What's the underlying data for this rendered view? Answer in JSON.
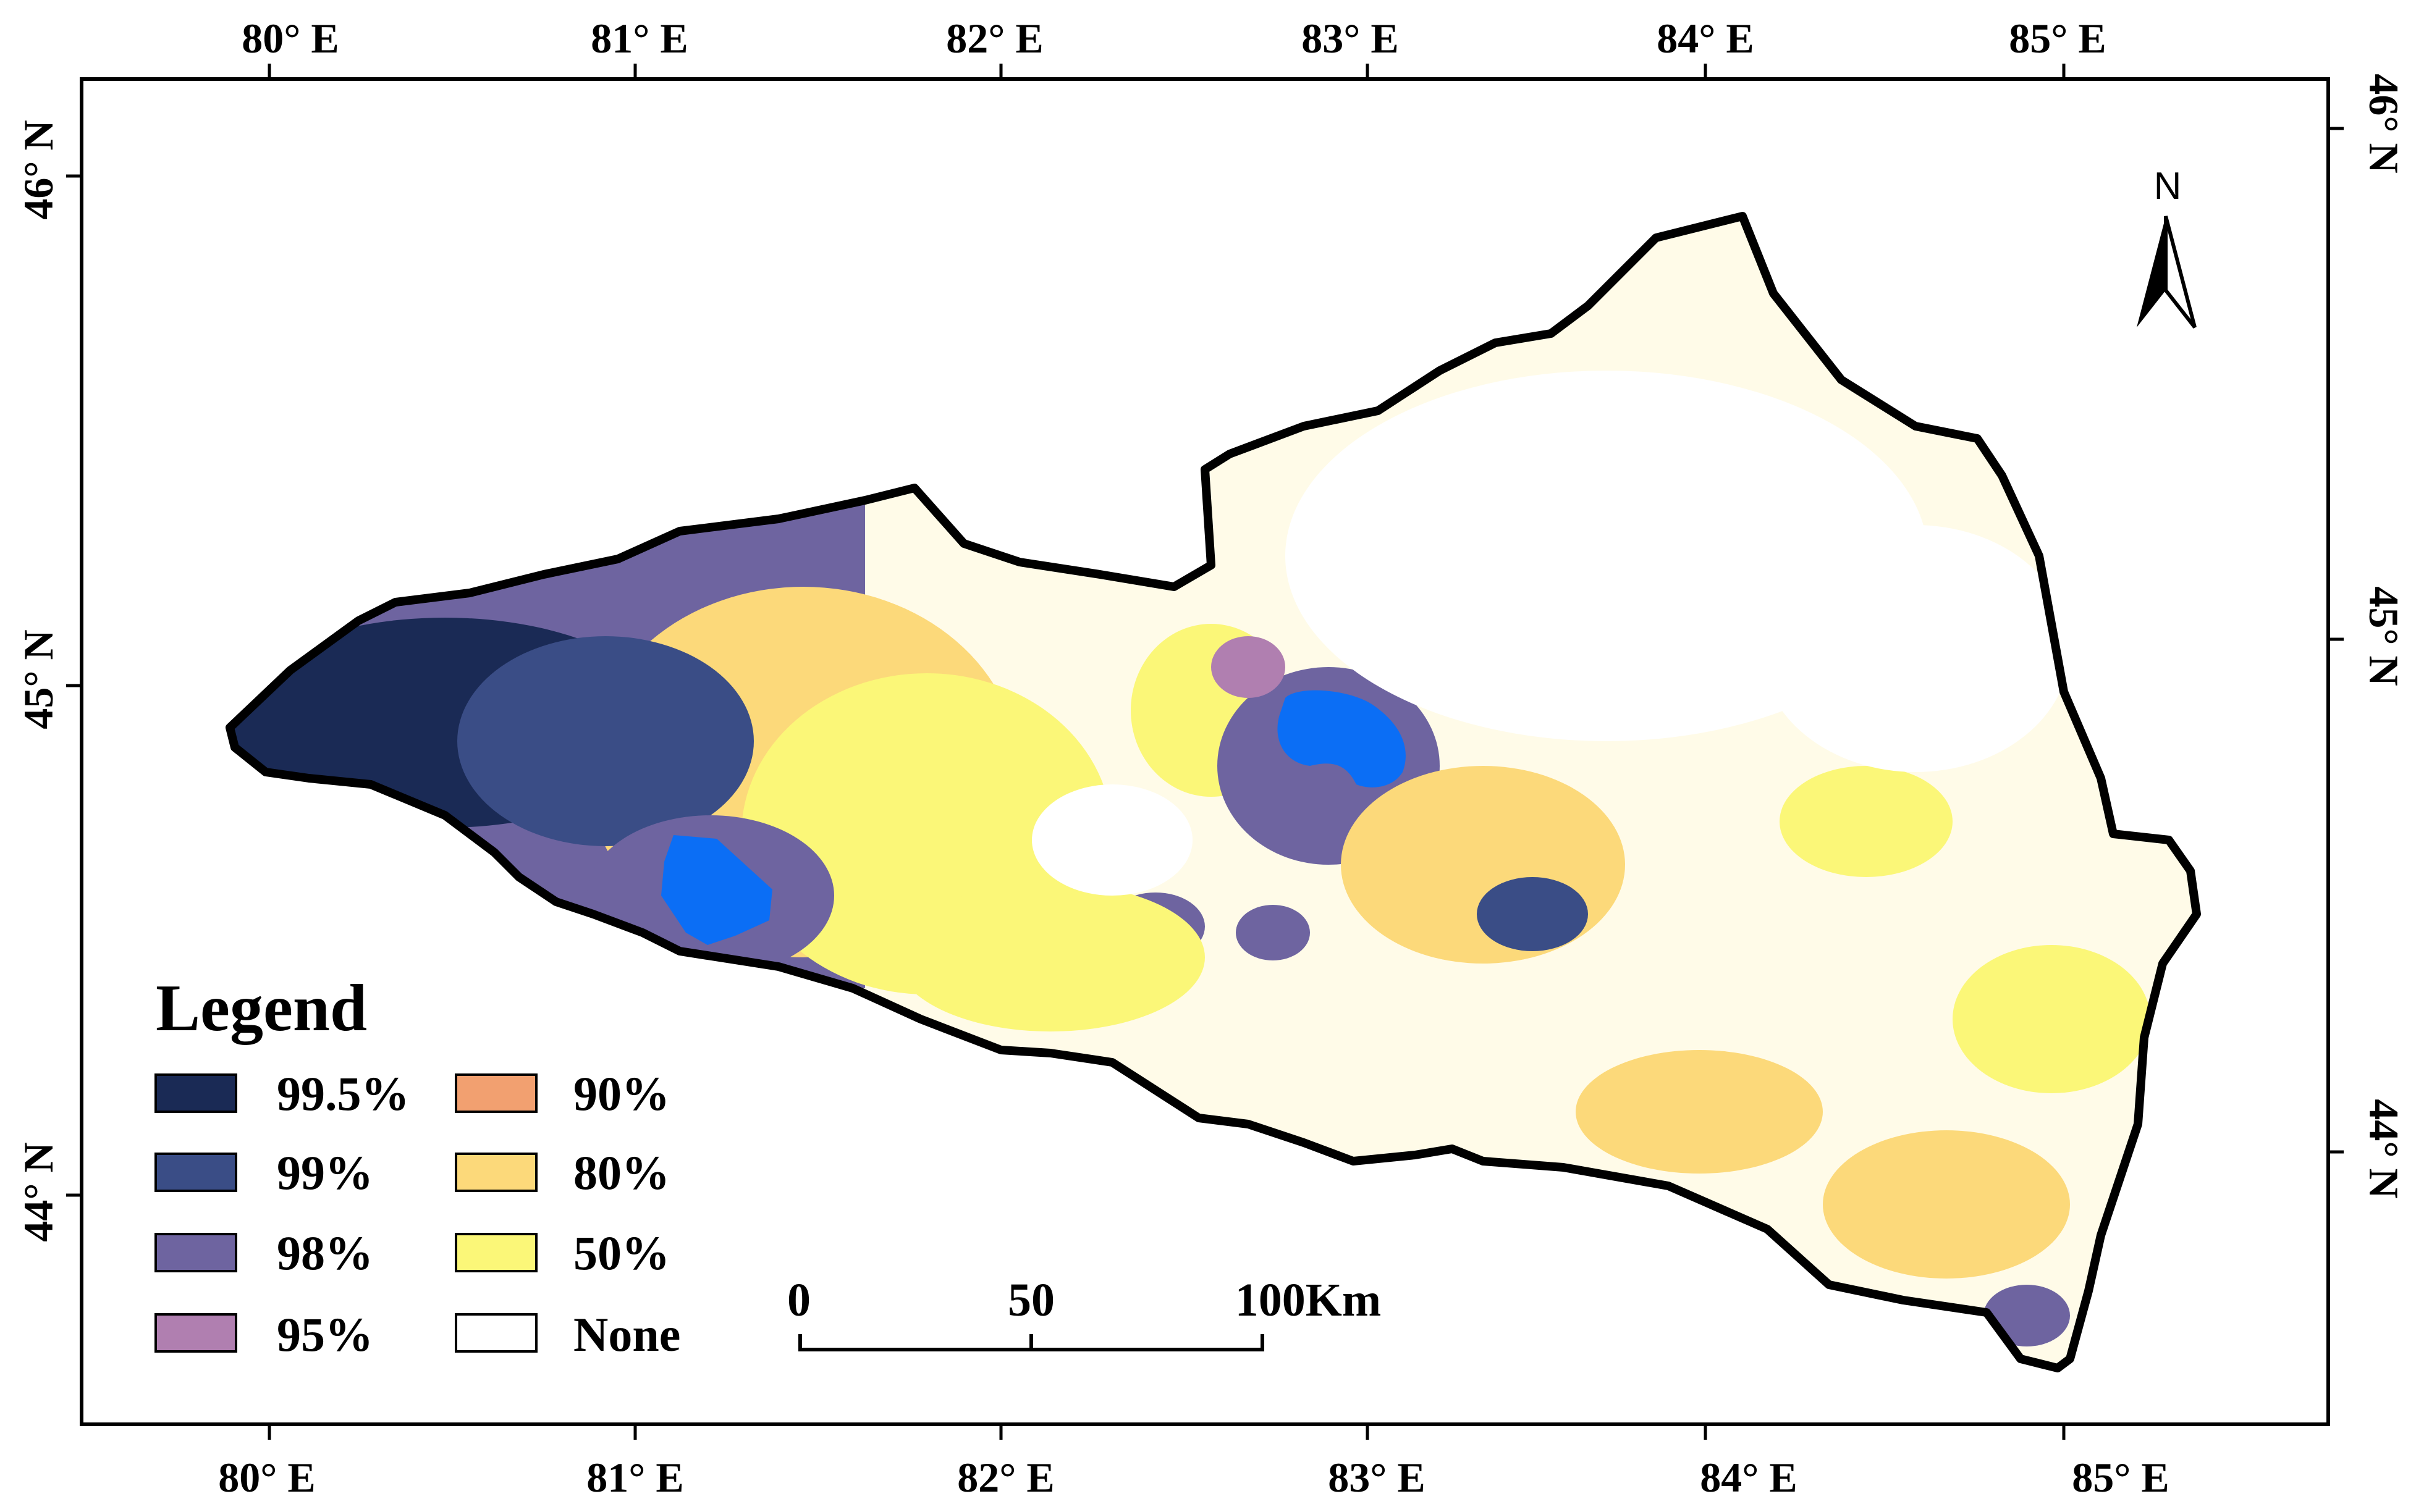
{
  "map": {
    "top_lon_labels": [
      "80° E",
      "81° E",
      "82° E",
      "83° E",
      "84° E",
      "85° E"
    ],
    "bottom_lon_labels": [
      "80° E",
      "81° E",
      "82° E",
      "83° E",
      "84° E",
      "85° E"
    ],
    "left_lat_labels": [
      "46° N",
      "45° N",
      "44° N"
    ],
    "right_lat_labels": [
      "46° N",
      "45° N",
      "44° N"
    ],
    "north_arrow": {
      "label": "N",
      "icon": "north-arrow-icon"
    },
    "scale_bar": {
      "labels": [
        "0",
        "50",
        "100Km"
      ]
    },
    "lakes": {
      "color": "#0b6ef5"
    },
    "boundary_color": "#000000"
  },
  "legend": {
    "title": "Legend",
    "items": [
      {
        "label": "99.5%",
        "color": "#1a2a55"
      },
      {
        "label": "99%",
        "color": "#3a4d86"
      },
      {
        "label": "98%",
        "color": "#6e64a0"
      },
      {
        "label": "95%",
        "color": "#b07fb0"
      },
      {
        "label": "90%",
        "color": "#f2a070"
      },
      {
        "label": "80%",
        "color": "#fcd97a"
      },
      {
        "label": "50%",
        "color": "#fbf778"
      },
      {
        "label": "None",
        "color": "#ffffff"
      }
    ]
  }
}
